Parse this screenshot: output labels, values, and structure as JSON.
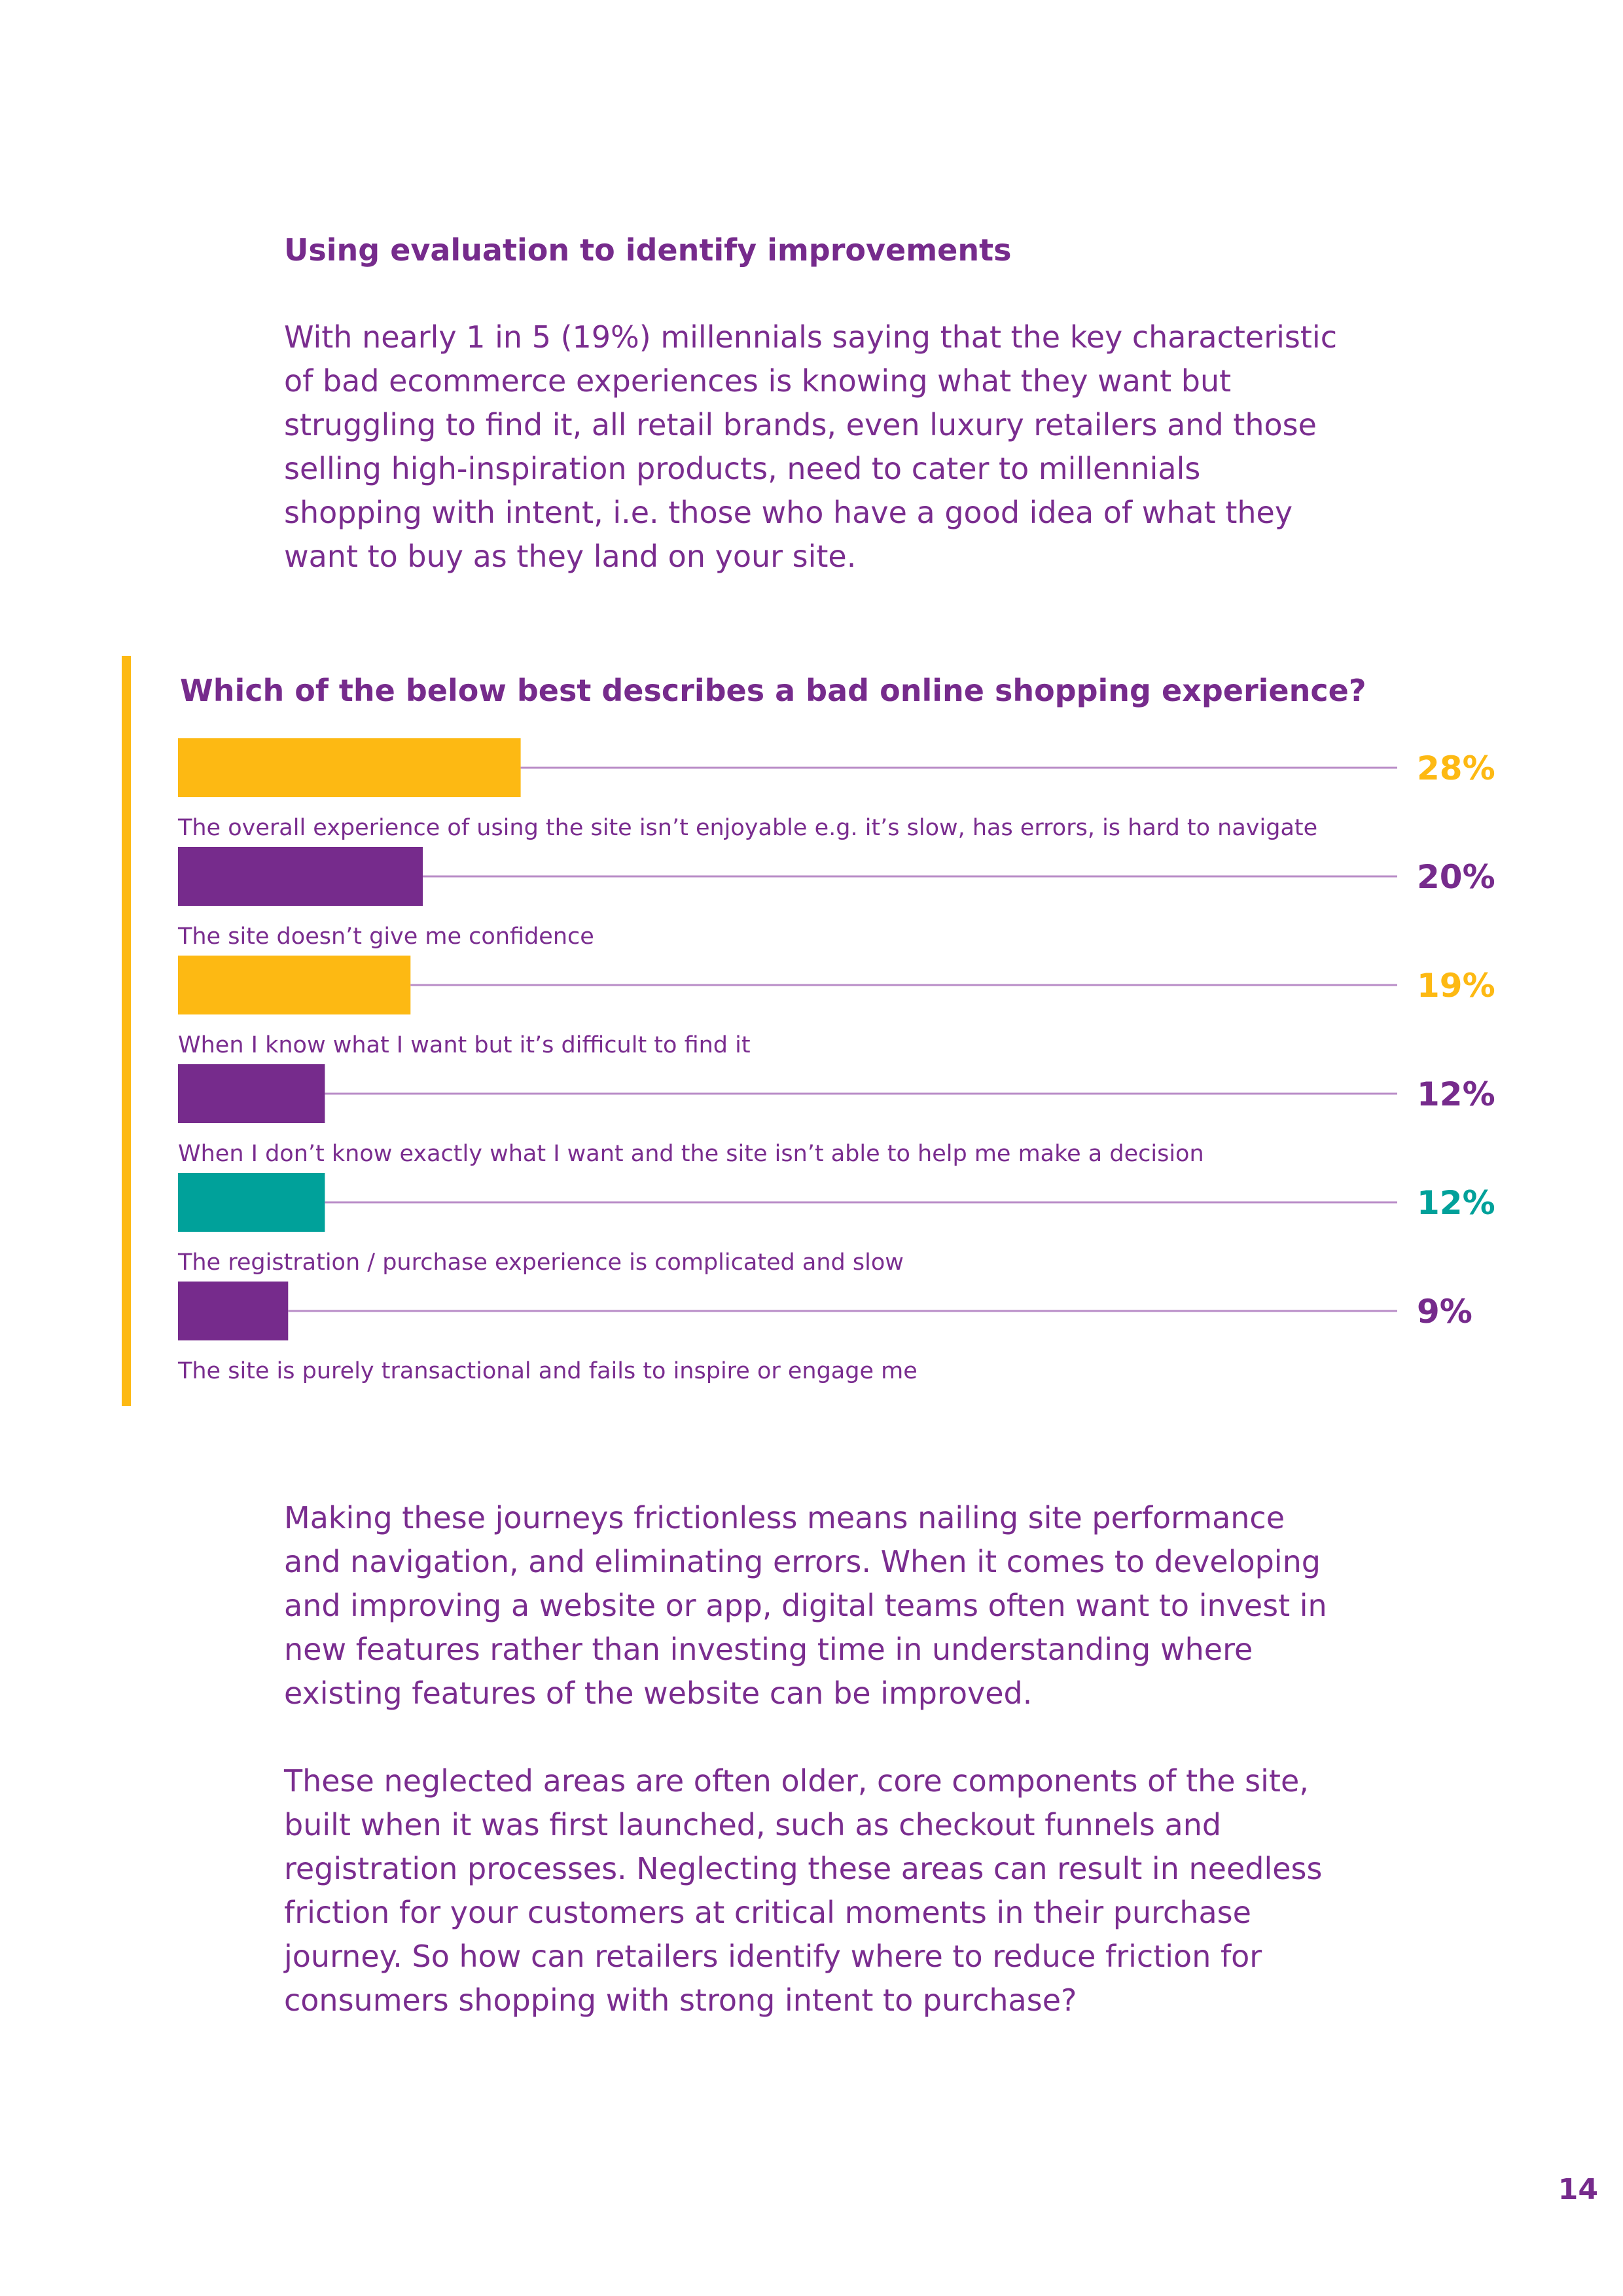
{
  "section": {
    "heading": "Using evaluation to identify improvements",
    "intro": "With nearly 1 in 5 (19%) millennials saying that the key characteristic of bad ecommerce experiences is knowing what they want but struggling to find it, all retail brands, even luxury retailers and those selling high-inspiration products, need to cater to millennials shopping with intent, i.e. those who have a good idea of what they want to buy as they land on your site."
  },
  "chart_data": {
    "type": "bar",
    "orientation": "horizontal",
    "title": "Which of the below best describes a bad online shopping experience?",
    "categories": [
      "The overall experience of using the site isn’t enjoyable e.g. it’s slow, has errors, is hard to navigate",
      "The site doesn’t give me confidence",
      "When I know what I want but it’s difficult to find it",
      "When I don’t know exactly what I want and the site isn’t able to help me make a decision",
      "The registration / purchase experience is complicated and slow",
      "The site is purely transactional and fails to inspire or engage me"
    ],
    "values": [
      28,
      20,
      19,
      12,
      12,
      9
    ],
    "value_labels": [
      "28%",
      "20%",
      "19%",
      "12%",
      "12%",
      "9%"
    ],
    "colors": [
      "#fdb913",
      "#762b8c",
      "#fdb913",
      "#762b8c",
      "#00a19a",
      "#762b8c"
    ],
    "unit": "%",
    "xlim": [
      0,
      100
    ],
    "grid": false,
    "legend": "none"
  },
  "body": {
    "paragraph_1": "Making these journeys frictionless means nailing site performance and navigation, and eliminating errors. When it comes to developing and improving a website or app, digital teams often want to invest in new features rather than investing time in understanding where existing features of the website can be improved.",
    "paragraph_2": "These neglected areas are often older, core components of the site, built when it was first launched, such as checkout funnels and registration processes. Neglecting these areas can result in needless friction for your customers at critical moments in their purchase journey. So how can retailers identify where to reduce friction for consumers shopping with strong intent to purchase?"
  },
  "footer": {
    "page_number": "14"
  }
}
